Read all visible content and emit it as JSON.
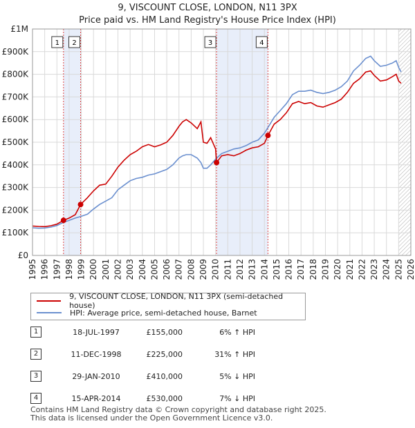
{
  "chart_data": {
    "type": "line",
    "title": "9, VISCOUNT CLOSE, LONDON, N11 3PX",
    "subtitle": "Price paid vs. HM Land Registry's House Price Index (HPI)",
    "xlim": [
      1995,
      2026
    ],
    "ylim": [
      0,
      1000000
    ],
    "x_ticks": [
      "1995",
      "1996",
      "1997",
      "1998",
      "1999",
      "2000",
      "2001",
      "2002",
      "2003",
      "2004",
      "2005",
      "2006",
      "2007",
      "2008",
      "2009",
      "2010",
      "2011",
      "2012",
      "2013",
      "2014",
      "2015",
      "2016",
      "2017",
      "2018",
      "2019",
      "2020",
      "2021",
      "2022",
      "2023",
      "2024",
      "2025",
      "2026"
    ],
    "y_ticks": [
      {
        "value": 0,
        "label": "£0"
      },
      {
        "value": 100000,
        "label": "£100K"
      },
      {
        "value": 200000,
        "label": "£200K"
      },
      {
        "value": 300000,
        "label": "£300K"
      },
      {
        "value": 400000,
        "label": "£400K"
      },
      {
        "value": 500000,
        "label": "£500K"
      },
      {
        "value": 600000,
        "label": "£600K"
      },
      {
        "value": 700000,
        "label": "£700K"
      },
      {
        "value": 800000,
        "label": "£800K"
      },
      {
        "value": 900000,
        "label": "£900K"
      },
      {
        "value": 1000000,
        "label": "£1M"
      }
    ],
    "series": [
      {
        "name": "9, VISCOUNT CLOSE, LONDON, N11 3PX (semi-detached house)",
        "color": "#cc0000",
        "points": [
          [
            1995.0,
            130000
          ],
          [
            1995.5,
            128000
          ],
          [
            1996.0,
            127000
          ],
          [
            1996.5,
            131000
          ],
          [
            1997.0,
            138000
          ],
          [
            1997.54,
            155000
          ],
          [
            1998.0,
            165000
          ],
          [
            1998.5,
            180000
          ],
          [
            1998.94,
            225000
          ],
          [
            1999.5,
            255000
          ],
          [
            2000.0,
            285000
          ],
          [
            2000.5,
            310000
          ],
          [
            2001.0,
            315000
          ],
          [
            2001.5,
            350000
          ],
          [
            2002.0,
            390000
          ],
          [
            2002.5,
            420000
          ],
          [
            2003.0,
            445000
          ],
          [
            2003.5,
            460000
          ],
          [
            2004.0,
            480000
          ],
          [
            2004.5,
            490000
          ],
          [
            2005.0,
            480000
          ],
          [
            2005.5,
            488000
          ],
          [
            2006.0,
            500000
          ],
          [
            2006.5,
            530000
          ],
          [
            2007.0,
            570000
          ],
          [
            2007.3,
            590000
          ],
          [
            2007.6,
            600000
          ],
          [
            2008.0,
            585000
          ],
          [
            2008.5,
            560000
          ],
          [
            2008.8,
            590000
          ],
          [
            2009.0,
            500000
          ],
          [
            2009.3,
            495000
          ],
          [
            2009.6,
            520000
          ],
          [
            2010.0,
            470000
          ],
          [
            2010.08,
            410000
          ],
          [
            2010.5,
            440000
          ],
          [
            2011.0,
            445000
          ],
          [
            2011.5,
            440000
          ],
          [
            2012.0,
            450000
          ],
          [
            2012.5,
            465000
          ],
          [
            2013.0,
            475000
          ],
          [
            2013.5,
            480000
          ],
          [
            2014.0,
            495000
          ],
          [
            2014.29,
            530000
          ],
          [
            2014.8,
            580000
          ],
          [
            2015.3,
            600000
          ],
          [
            2015.8,
            630000
          ],
          [
            2016.3,
            670000
          ],
          [
            2016.8,
            680000
          ],
          [
            2017.3,
            670000
          ],
          [
            2017.8,
            675000
          ],
          [
            2018.3,
            660000
          ],
          [
            2018.8,
            655000
          ],
          [
            2019.3,
            665000
          ],
          [
            2019.8,
            675000
          ],
          [
            2020.3,
            690000
          ],
          [
            2020.8,
            720000
          ],
          [
            2021.3,
            760000
          ],
          [
            2021.8,
            780000
          ],
          [
            2022.3,
            810000
          ],
          [
            2022.7,
            815000
          ],
          [
            2023.0,
            795000
          ],
          [
            2023.5,
            770000
          ],
          [
            2024.0,
            775000
          ],
          [
            2024.5,
            790000
          ],
          [
            2024.8,
            800000
          ],
          [
            2025.0,
            770000
          ],
          [
            2025.2,
            760000
          ]
        ]
      },
      {
        "name": "HPI: Average price, semi-detached house, Barnet",
        "color": "#6a8fcf",
        "points": [
          [
            1995.0,
            122000
          ],
          [
            1995.5,
            120000
          ],
          [
            1996.0,
            121000
          ],
          [
            1996.5,
            125000
          ],
          [
            1997.0,
            132000
          ],
          [
            1997.54,
            146000
          ],
          [
            1998.0,
            155000
          ],
          [
            1998.5,
            165000
          ],
          [
            1998.94,
            172000
          ],
          [
            1999.5,
            182000
          ],
          [
            2000.0,
            205000
          ],
          [
            2000.5,
            225000
          ],
          [
            2001.0,
            240000
          ],
          [
            2001.5,
            255000
          ],
          [
            2002.0,
            290000
          ],
          [
            2002.5,
            310000
          ],
          [
            2003.0,
            330000
          ],
          [
            2003.5,
            340000
          ],
          [
            2004.0,
            345000
          ],
          [
            2004.5,
            355000
          ],
          [
            2005.0,
            360000
          ],
          [
            2005.5,
            370000
          ],
          [
            2006.0,
            380000
          ],
          [
            2006.5,
            400000
          ],
          [
            2007.0,
            430000
          ],
          [
            2007.3,
            440000
          ],
          [
            2007.6,
            445000
          ],
          [
            2008.0,
            445000
          ],
          [
            2008.5,
            430000
          ],
          [
            2008.8,
            410000
          ],
          [
            2009.0,
            385000
          ],
          [
            2009.3,
            385000
          ],
          [
            2009.6,
            400000
          ],
          [
            2010.0,
            425000
          ],
          [
            2010.5,
            450000
          ],
          [
            2011.0,
            460000
          ],
          [
            2011.5,
            470000
          ],
          [
            2012.0,
            475000
          ],
          [
            2012.5,
            485000
          ],
          [
            2013.0,
            500000
          ],
          [
            2013.5,
            510000
          ],
          [
            2014.0,
            540000
          ],
          [
            2014.29,
            565000
          ],
          [
            2014.8,
            610000
          ],
          [
            2015.3,
            640000
          ],
          [
            2015.8,
            670000
          ],
          [
            2016.3,
            710000
          ],
          [
            2016.8,
            725000
          ],
          [
            2017.3,
            725000
          ],
          [
            2017.8,
            730000
          ],
          [
            2018.3,
            720000
          ],
          [
            2018.8,
            715000
          ],
          [
            2019.3,
            720000
          ],
          [
            2019.8,
            730000
          ],
          [
            2020.3,
            745000
          ],
          [
            2020.8,
            770000
          ],
          [
            2021.3,
            815000
          ],
          [
            2021.8,
            840000
          ],
          [
            2022.3,
            870000
          ],
          [
            2022.7,
            880000
          ],
          [
            2023.0,
            860000
          ],
          [
            2023.5,
            835000
          ],
          [
            2024.0,
            840000
          ],
          [
            2024.5,
            850000
          ],
          [
            2024.8,
            860000
          ],
          [
            2025.0,
            830000
          ],
          [
            2025.2,
            810000
          ]
        ]
      }
    ],
    "sales": [
      {
        "id": "1",
        "x": 1997.54,
        "price": 155000
      },
      {
        "id": "2",
        "x": 1998.94,
        "price": 225000
      },
      {
        "id": "3",
        "x": 2010.08,
        "price": 410000
      },
      {
        "id": "4",
        "x": 2014.29,
        "price": 530000
      }
    ],
    "shaded_ranges": [
      [
        1997.54,
        1998.94
      ],
      [
        2010.08,
        2014.29
      ]
    ],
    "hatched_from": 2025.0
  },
  "legend": {
    "red_label": "9, VISCOUNT CLOSE, LONDON, N11 3PX (semi-detached house)",
    "blue_label": "HPI: Average price, semi-detached house, Barnet"
  },
  "transactions": [
    {
      "num": "1",
      "date": "18-JUL-1997",
      "price": "£155,000",
      "hpi": "6% ↑ HPI"
    },
    {
      "num": "2",
      "date": "11-DEC-1998",
      "price": "£225,000",
      "hpi": "31% ↑ HPI"
    },
    {
      "num": "3",
      "date": "29-JAN-2010",
      "price": "£410,000",
      "hpi": "5% ↓ HPI"
    },
    {
      "num": "4",
      "date": "15-APR-2014",
      "price": "£530,000",
      "hpi": "7% ↓ HPI"
    }
  ],
  "footer": {
    "line1": "Contains HM Land Registry data © Crown copyright and database right 2025.",
    "line2": "This data is licensed under the Open Government Licence v3.0."
  }
}
